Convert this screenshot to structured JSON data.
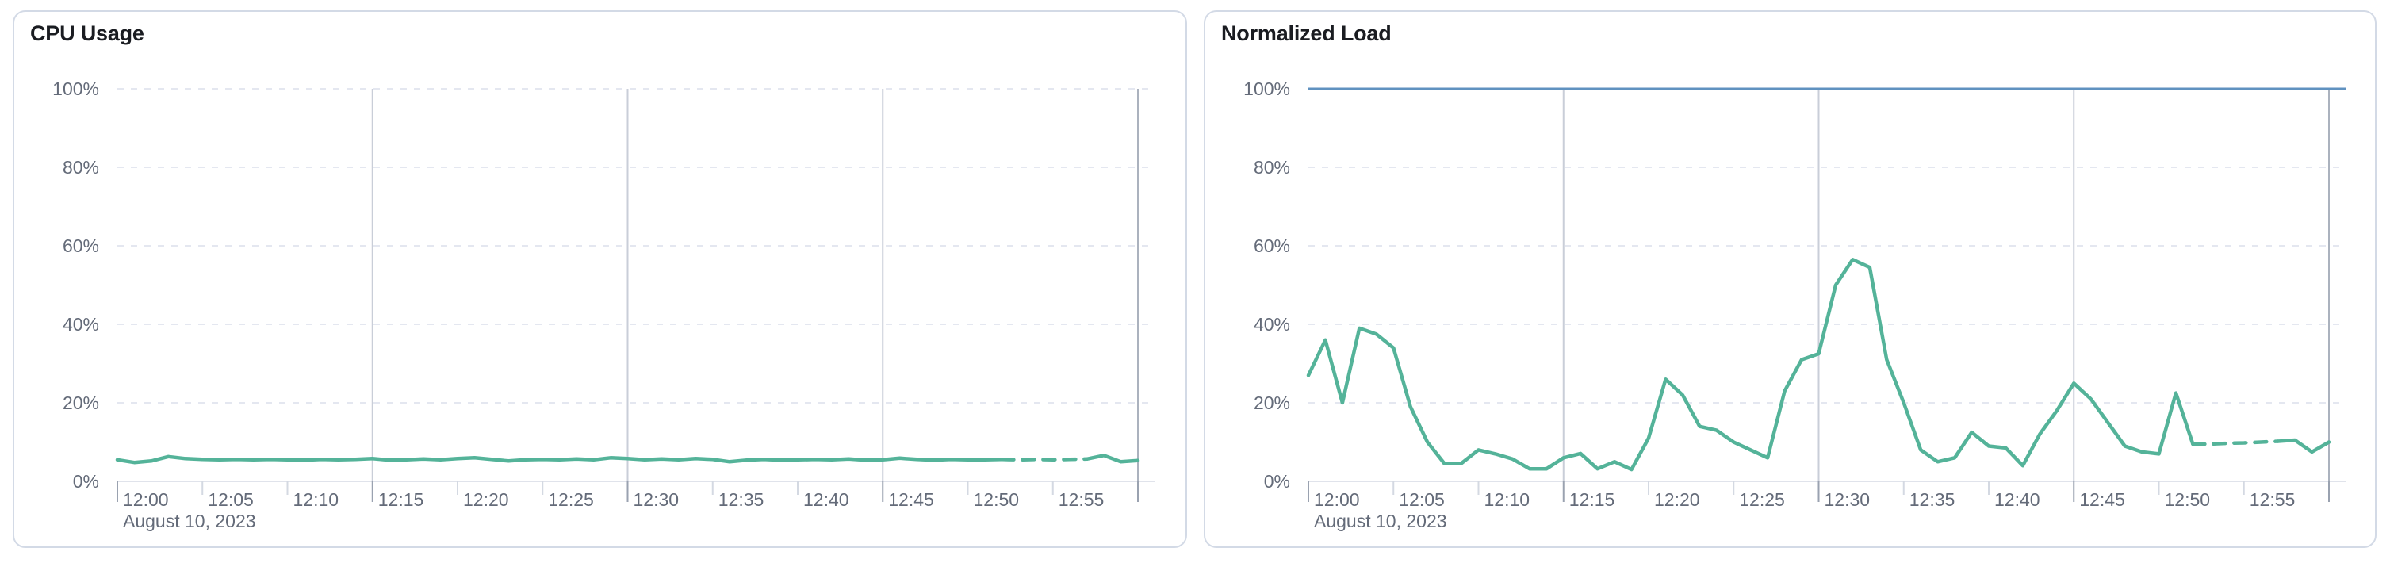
{
  "page": {
    "background": "#ffffff"
  },
  "colors": {
    "series_green": "#54B399",
    "limit_blue": "#6092C0",
    "grid_dashed": "#E4E7F0",
    "grid_vertical": "#C9CED8",
    "grid_end": "#ABB2BE",
    "axis_line": "#E0E3EB",
    "tick_major": "#9AA2B0",
    "tick_minor": "#D4D9E2",
    "axis_text": "#646B79",
    "title_text": "#1A1C21",
    "card_border": "#D3DAE6"
  },
  "charts": [
    {
      "title": "CPU Usage",
      "date_label": "August 10, 2023",
      "y_ticks": [
        "100%",
        "80%",
        "60%",
        "40%",
        "20%",
        "0%"
      ],
      "x_ticks": [
        "12:00",
        "12:05",
        "12:10",
        "12:15",
        "12:20",
        "12:25",
        "12:30",
        "12:35",
        "12:40",
        "12:45",
        "12:50",
        "12:55"
      ],
      "chart_data": {
        "type": "line",
        "unit": "%",
        "ylim": [
          0,
          100
        ],
        "x_start": "12:00",
        "x_end": "13:00",
        "x_interval_minutes": 1,
        "grid": {
          "horizontal": "dashed every 20%",
          "vertical": "solid every 15 min"
        },
        "legend": "none",
        "dashed_segment_indices": [
          52,
          57
        ],
        "series": [
          {
            "name": "cpu-usage",
            "color": "#54B399",
            "values": [
              5.5,
              4.8,
              5.2,
              6.3,
              5.8,
              5.6,
              5.5,
              5.6,
              5.5,
              5.6,
              5.5,
              5.4,
              5.6,
              5.5,
              5.6,
              5.8,
              5.4,
              5.5,
              5.7,
              5.5,
              5.8,
              6.0,
              5.6,
              5.2,
              5.5,
              5.6,
              5.5,
              5.7,
              5.5,
              6.0,
              5.8,
              5.5,
              5.7,
              5.5,
              5.8,
              5.6,
              5.0,
              5.4,
              5.6,
              5.4,
              5.5,
              5.6,
              5.5,
              5.7,
              5.4,
              5.5,
              5.9,
              5.6,
              5.4,
              5.6,
              5.5,
              5.5,
              5.6,
              5.5,
              5.6,
              5.5,
              5.6,
              5.7,
              6.6,
              5.0,
              5.3
            ]
          }
        ]
      }
    },
    {
      "title": "Normalized Load",
      "date_label": "August 10, 2023",
      "y_ticks": [
        "100%",
        "80%",
        "60%",
        "40%",
        "20%",
        "0%"
      ],
      "x_ticks": [
        "12:00",
        "12:05",
        "12:10",
        "12:15",
        "12:20",
        "12:25",
        "12:30",
        "12:35",
        "12:40",
        "12:45",
        "12:50",
        "12:55"
      ],
      "chart_data": {
        "type": "line",
        "unit": "%",
        "ylim": [
          0,
          100
        ],
        "x_start": "12:00",
        "x_end": "13:00",
        "x_interval_minutes": 1,
        "grid": {
          "horizontal": "dashed every 20%",
          "vertical": "solid every 15 min"
        },
        "legend": "none",
        "dashed_segment_indices": [
          52,
          57
        ],
        "limit_line": {
          "name": "limit",
          "value": 100,
          "color": "#6092C0"
        },
        "series": [
          {
            "name": "normalized-load",
            "color": "#54B399",
            "values": [
              27,
              36,
              20,
              39,
              37.5,
              34,
              19,
              10,
              4.5,
              4.6,
              8,
              7,
              5.7,
              3.2,
              3.2,
              6,
              7.1,
              3.2,
              5,
              3,
              11,
              26,
              22,
              14,
              13,
              10,
              8,
              6,
              23,
              31,
              32.5,
              50,
              56.5,
              54.5,
              31,
              20,
              8,
              5,
              6,
              12.5,
              9,
              8.5,
              4,
              12,
              18,
              25,
              21,
              15,
              9,
              7.5,
              7,
              22.5,
              9.5,
              9.5,
              9.7,
              9.8,
              10,
              10.2,
              10.5,
              7.5,
              10
            ]
          }
        ]
      }
    }
  ]
}
